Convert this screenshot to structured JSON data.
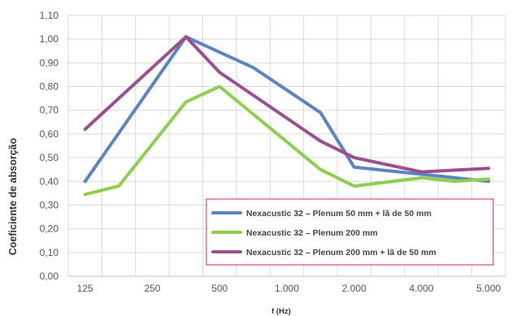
{
  "chart_data": {
    "type": "line",
    "xlabel": "f (Hz)",
    "ylabel": "Coeficiente de absorção",
    "ylim": [
      0,
      1.1
    ],
    "yticks": [
      "0,00",
      "0,10",
      "0,20",
      "0,30",
      "0,40",
      "0,50",
      "0,60",
      "0,70",
      "0,80",
      "0,90",
      "1,00",
      "1,10"
    ],
    "xticks": [
      "125",
      "250",
      "500",
      "1.000",
      "2.000",
      "4.000",
      "5.000"
    ],
    "xtick_positions": [
      0.5,
      2.5,
      4.5,
      6.5,
      8.5,
      10.5,
      12.5
    ],
    "x_band_count": 13,
    "grid": true,
    "legend_position": "bottom-right",
    "series": [
      {
        "name": "Nexacustic 32 – Plenum 50 mm + lã de 50 mm",
        "color": "#5b84c4",
        "points": [
          [
            0.5,
            0.4
          ],
          [
            3.5,
            1.01
          ],
          [
            5.5,
            0.88
          ],
          [
            7.5,
            0.69
          ],
          [
            8.5,
            0.46
          ],
          [
            10.5,
            0.43
          ],
          [
            12.5,
            0.4
          ]
        ]
      },
      {
        "name": "Nexacustic 32 – Plenum 200 mm",
        "color": "#8fce4e",
        "points": [
          [
            0.5,
            0.345
          ],
          [
            1.5,
            0.38
          ],
          [
            3.5,
            0.735
          ],
          [
            4.5,
            0.8
          ],
          [
            7.5,
            0.45
          ],
          [
            8.5,
            0.38
          ],
          [
            10.5,
            0.415
          ],
          [
            11.5,
            0.4
          ],
          [
            12.5,
            0.41
          ]
        ]
      },
      {
        "name": "Nexacustic 32 – Plenum 200 mm + lã de 50 mm",
        "color": "#9b4f8e",
        "points": [
          [
            0.5,
            0.62
          ],
          [
            3.5,
            1.01
          ],
          [
            4.5,
            0.86
          ],
          [
            7.5,
            0.57
          ],
          [
            8.5,
            0.5
          ],
          [
            10.5,
            0.44
          ],
          [
            12.5,
            0.455
          ]
        ]
      }
    ]
  }
}
